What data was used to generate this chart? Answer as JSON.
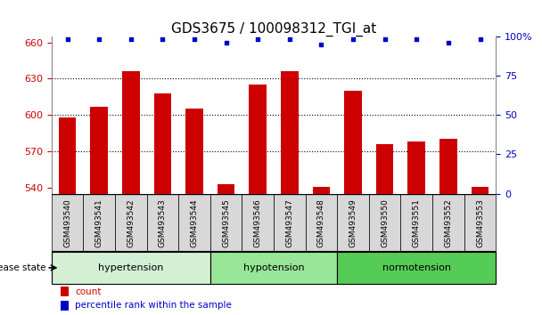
{
  "title": "GDS3675 / 100098312_TGI_at",
  "samples": [
    "GSM493540",
    "GSM493541",
    "GSM493542",
    "GSM493543",
    "GSM493544",
    "GSM493545",
    "GSM493546",
    "GSM493547",
    "GSM493548",
    "GSM493549",
    "GSM493550",
    "GSM493551",
    "GSM493552",
    "GSM493553"
  ],
  "bar_values": [
    598,
    607,
    636,
    618,
    605,
    543,
    625,
    636,
    541,
    620,
    576,
    578,
    580,
    541
  ],
  "percentile_values": [
    98,
    98,
    98,
    98,
    98,
    96,
    98,
    98,
    95,
    98,
    98,
    98,
    96,
    98
  ],
  "bar_color": "#cc0000",
  "percentile_color": "#0000cc",
  "ylim_left": [
    535,
    665
  ],
  "ylim_right": [
    0,
    100
  ],
  "yticks_left": [
    540,
    570,
    600,
    630,
    660
  ],
  "yticks_right": [
    0,
    25,
    50,
    75,
    100
  ],
  "groups": [
    {
      "label": "hypertension",
      "start": 0,
      "end": 5,
      "color": "#d4f0d4"
    },
    {
      "label": "hypotension",
      "start": 5,
      "end": 9,
      "color": "#99e699"
    },
    {
      "label": "normotension",
      "start": 9,
      "end": 14,
      "color": "#55cc55"
    }
  ],
  "group_bar_bg": "#d8d8d8",
  "legend_count_color": "#cc0000",
  "legend_percentile_color": "#0000cc",
  "title_fontsize": 11,
  "tick_fontsize": 8,
  "sample_fontsize": 6.5,
  "group_fontsize": 8,
  "legend_fontsize": 7.5
}
